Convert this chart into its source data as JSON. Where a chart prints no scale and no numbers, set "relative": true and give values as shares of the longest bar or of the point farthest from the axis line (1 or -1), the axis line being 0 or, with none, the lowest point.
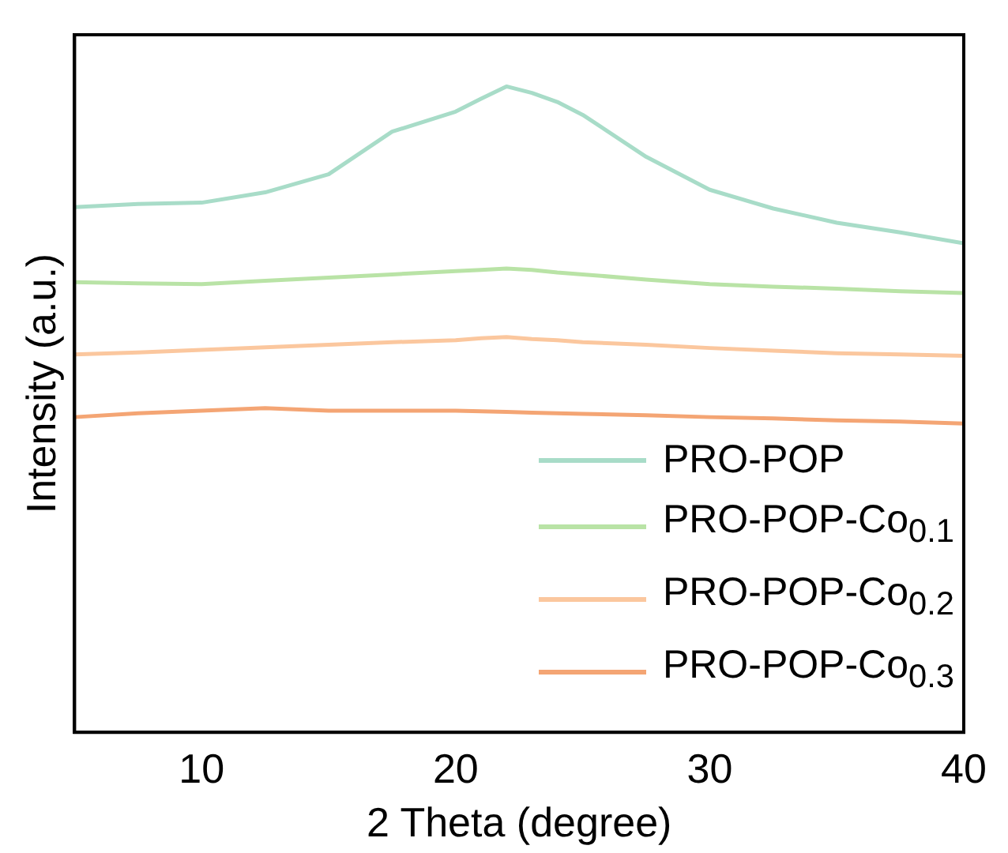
{
  "chart_data": {
    "type": "line",
    "relative": true,
    "xlabel": "2 Theta (degree)",
    "ylabel": "Intensity (a.u.)",
    "xlim": [
      5,
      40
    ],
    "xticks": [
      10,
      20,
      30,
      40
    ],
    "grid": false,
    "legend": "bottom right",
    "marker": "none",
    "line_style": "solid",
    "x": [
      5,
      7.5,
      10,
      12.5,
      15,
      17.5,
      20,
      21,
      22,
      23,
      24,
      25,
      27.5,
      30,
      32.5,
      35,
      37.5,
      40
    ],
    "series": [
      {
        "name": "PRO-POP",
        "color": "#a8dcc8",
        "values": [
          0.813,
          0.818,
          0.82,
          0.836,
          0.864,
          0.93,
          0.961,
          0.981,
          1.0,
          0.99,
          0.976,
          0.956,
          0.891,
          0.84,
          0.811,
          0.789,
          0.774,
          0.757
        ]
      },
      {
        "name": "PRO-POP-Co$_{0.1}$",
        "color": "#b9e3a6",
        "values": [
          0.697,
          0.695,
          0.694,
          0.699,
          0.704,
          0.709,
          0.714,
          0.716,
          0.718,
          0.716,
          0.712,
          0.709,
          0.701,
          0.694,
          0.69,
          0.687,
          0.683,
          0.68
        ]
      },
      {
        "name": "PRO-POP-Co$_{0.2}$",
        "color": "#fbc79e",
        "values": [
          0.585,
          0.588,
          0.592,
          0.596,
          0.6,
          0.604,
          0.607,
          0.61,
          0.612,
          0.609,
          0.607,
          0.604,
          0.6,
          0.595,
          0.591,
          0.587,
          0.585,
          0.583
        ]
      },
      {
        "name": "PRO-POP-Co$_{0.3}$",
        "color": "#f4a574",
        "values": [
          0.488,
          0.494,
          0.498,
          0.502,
          0.498,
          0.498,
          0.498,
          0.497,
          0.496,
          0.495,
          0.494,
          0.493,
          0.491,
          0.488,
          0.486,
          0.483,
          0.481,
          0.478
        ]
      }
    ]
  }
}
